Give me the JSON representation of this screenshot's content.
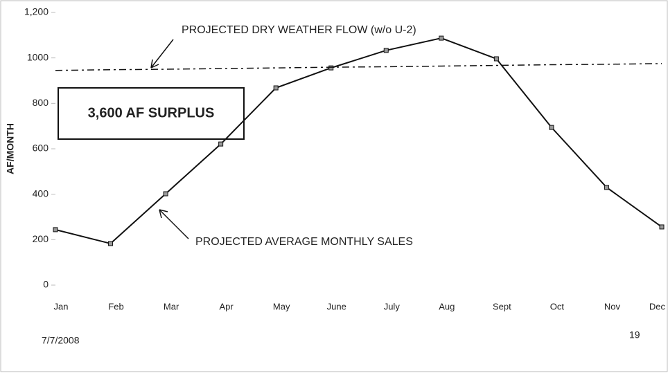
{
  "chart_data": {
    "type": "line",
    "y_label": "AF/MONTH",
    "categories": [
      "Jan",
      "Feb",
      "Mar",
      "Apr",
      "May",
      "June",
      "July",
      "Aug",
      "Sept",
      "Oct",
      "Nov",
      "Dec"
    ],
    "series": [
      {
        "name": "PROJECTED AVERAGE MONTHLY SALES",
        "color": "#111111",
        "values": [
          244,
          183,
          402,
          621,
          868,
          956,
          1033,
          1087,
          996,
          694,
          430,
          256
        ]
      },
      {
        "name": "PROJECTED DRY WEATHER FLOW (w/o U-2)",
        "color": "#111111",
        "dashed": true,
        "values": [
          945,
          948,
          950,
          953,
          956,
          959,
          961,
          964,
          967,
          970,
          972,
          975
        ]
      }
    ],
    "ylim": [
      0,
      1200
    ],
    "yticks": [
      0,
      200,
      400,
      600,
      800,
      1000,
      {
        "value": 1200,
        "label": "1,200"
      }
    ],
    "annotation": "3,600 AF SURPLUS",
    "footer_date": "7/7/2008",
    "page_number": "19"
  }
}
